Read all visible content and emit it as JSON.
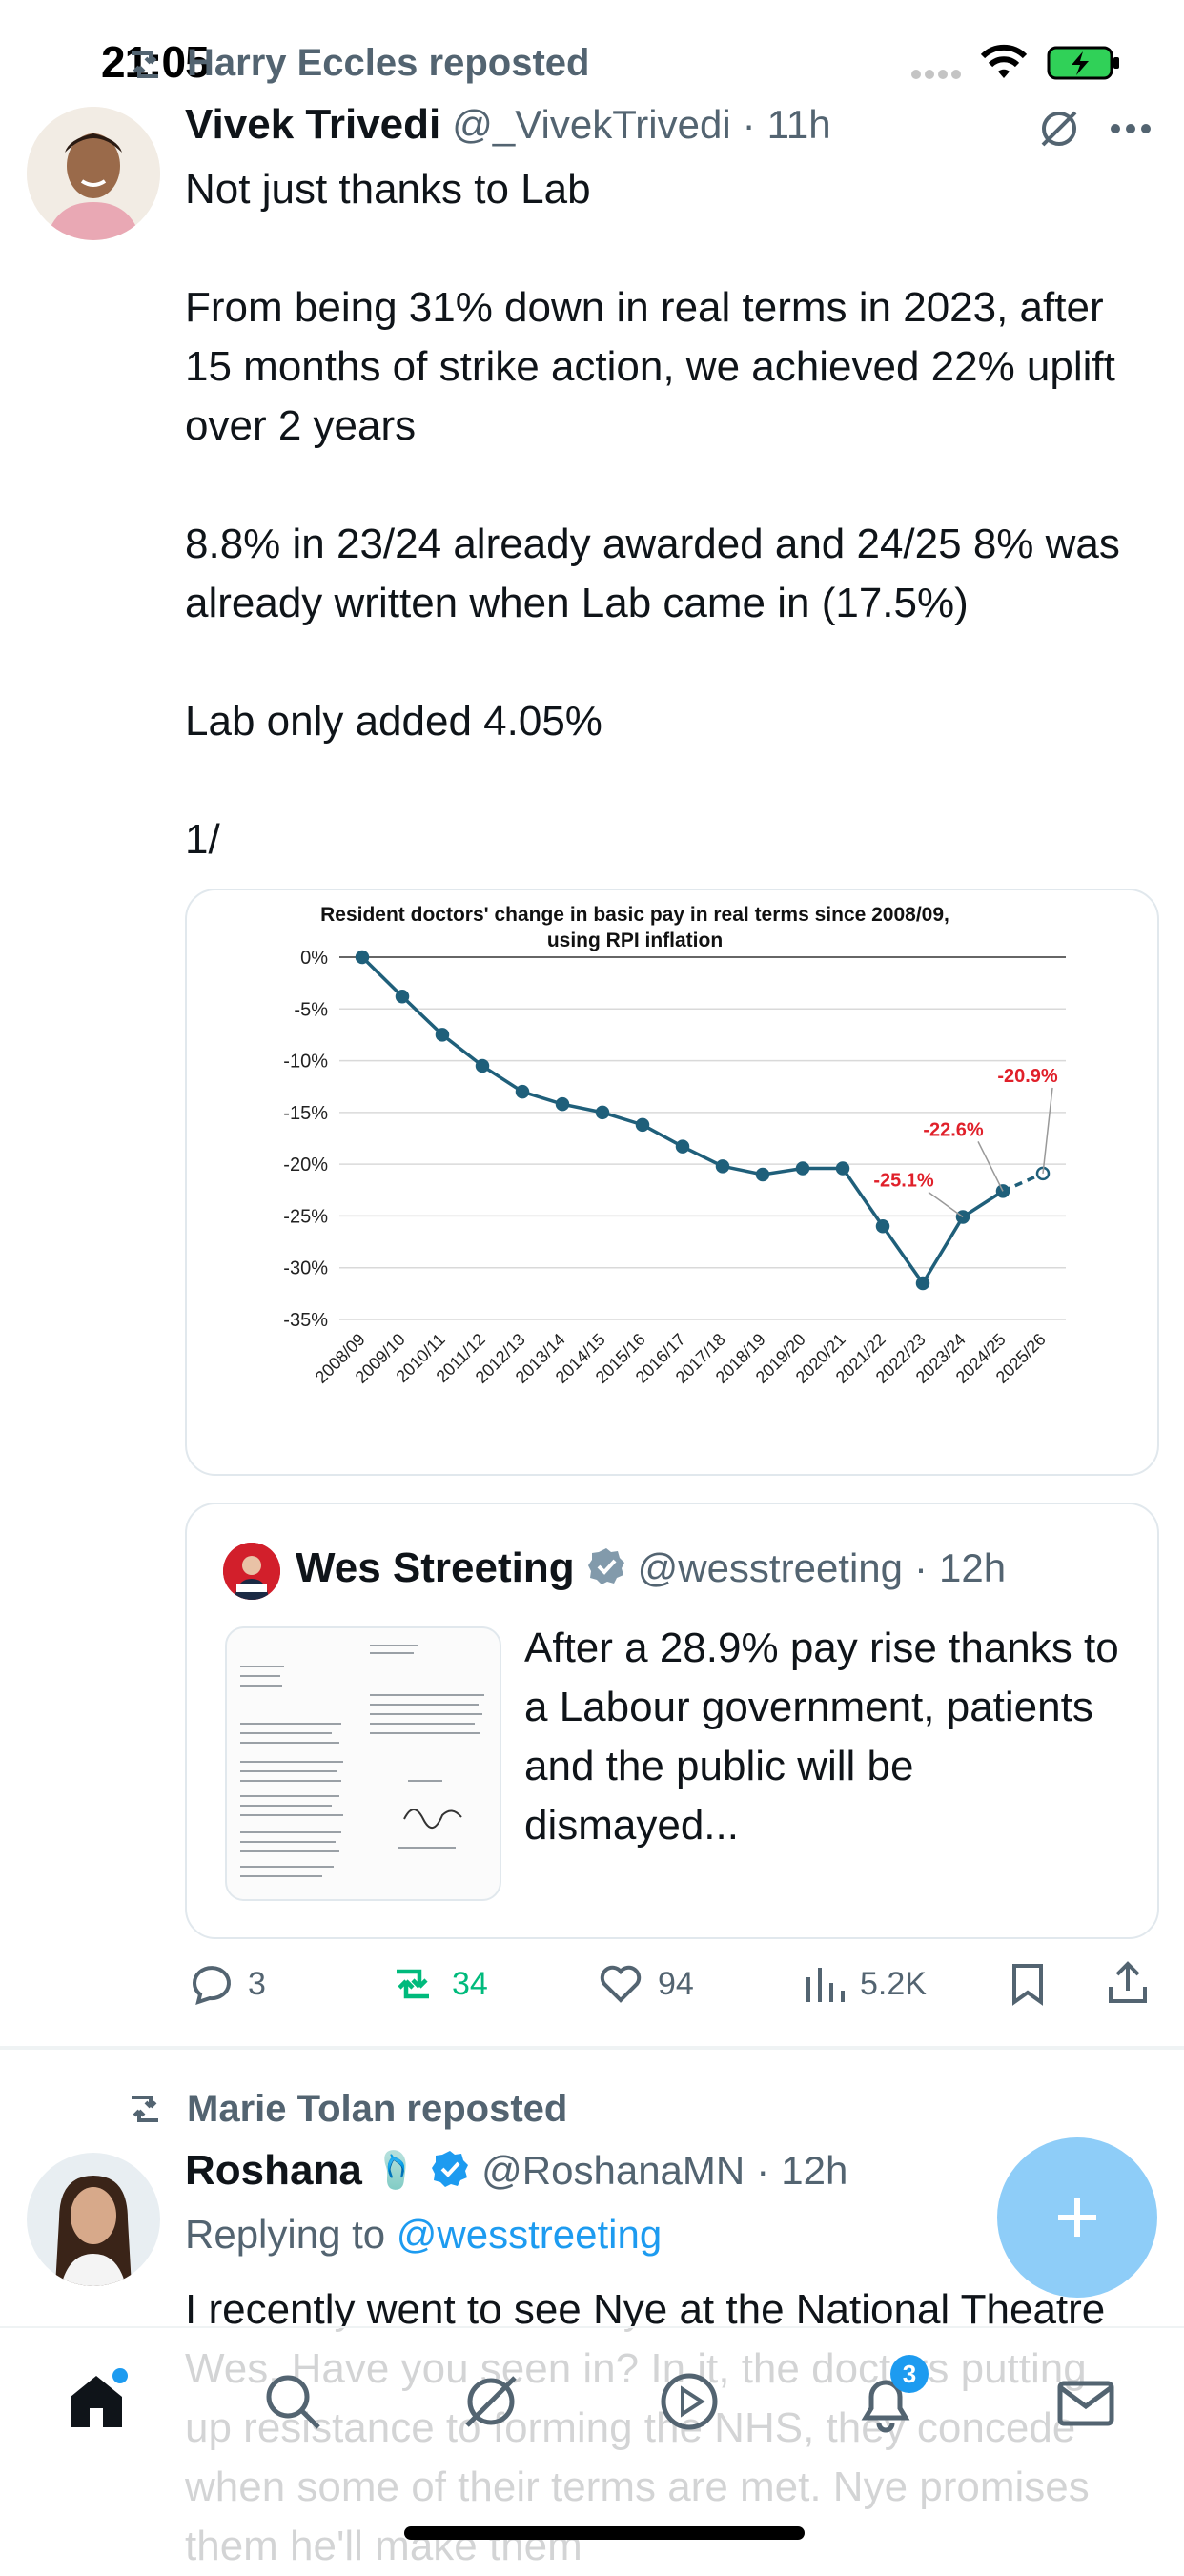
{
  "status_bar": {
    "time": "21:05"
  },
  "tweet1": {
    "reposted_by": "Harry Eccles reposted",
    "name": "Vivek Trivedi",
    "handle": "@_VivekTrivedi",
    "dot": "·",
    "time": "11h",
    "text": "Not just thanks to Lab\n\nFrom being 31% down in real terms in 2023, after 15 months of strike action, we achieved 22% uplift over 2 years\n\n8.8% in 23/24 already awarded and 24/25 8% was already written when Lab came in (17.5%)\n\nLab only added 4.05%\n\n1/",
    "quote": {
      "name": "Wes Streeting",
      "handle": "@wesstreeting",
      "dot": "·",
      "time": "12h",
      "text": "After a 28.9% pay rise thanks to a Labour government, patients and the public will be dismayed..."
    },
    "actions": {
      "replies": "3",
      "reposts": "34",
      "likes": "94",
      "views": "5.2K"
    }
  },
  "tweet2": {
    "reposted_by": "Marie Tolan reposted",
    "name": "Roshana",
    "name_emoji": "🩴",
    "handle": "@RoshanaMN",
    "dot": "·",
    "time": "12h",
    "replying_prefix": "Replying to",
    "replying_to": "@wesstreeting",
    "text": "I recently went to see Nye at the National Theatre Wes. Have you seen in? In it, the doctors putting up resistance to forming the NHS, they concede when some of their terms are met. Nye promises them he'll make them"
  },
  "tabbar": {
    "notifications_badge": "3"
  },
  "colors": {
    "accent": "#1d9bf0",
    "repost_green": "#00ba7c",
    "chart_line": "#1f5f7a",
    "chart_label_red": "#e0202a"
  },
  "chart_data": {
    "type": "line",
    "title": "Resident doctors' change in basic pay in real terms since 2008/09, using RPI inflation",
    "categories": [
      "2008/09",
      "2009/10",
      "2010/11",
      "2011/12",
      "2012/13",
      "2013/14",
      "2014/15",
      "2015/16",
      "2016/17",
      "2017/18",
      "2018/19",
      "2019/20",
      "2020/21",
      "2021/22",
      "2022/23",
      "2023/24",
      "2024/25",
      "2025/26"
    ],
    "series": [
      {
        "values": [
          0,
          -3.8,
          -7.5,
          -10.5,
          -13,
          -14.2,
          -15,
          -16.2,
          -18.3,
          -20.2,
          -21,
          -20.4,
          -20.4,
          -26,
          -31.5,
          -25.1,
          -22.6,
          -20.9
        ]
      }
    ],
    "projected_from_index": 16,
    "yticks": [
      0,
      -5,
      -10,
      -15,
      -20,
      -25,
      -30,
      -35
    ],
    "ytick_labels": [
      "0%",
      "-5%",
      "-10%",
      "-15%",
      "-20%",
      "-25%",
      "-30%",
      "-35%"
    ],
    "ylim": [
      -35,
      0
    ],
    "annotations": [
      {
        "label": "-25.1%",
        "index": 15
      },
      {
        "label": "-22.6%",
        "index": 16
      },
      {
        "label": "-20.9%",
        "index": 17
      }
    ],
    "grid": true
  }
}
